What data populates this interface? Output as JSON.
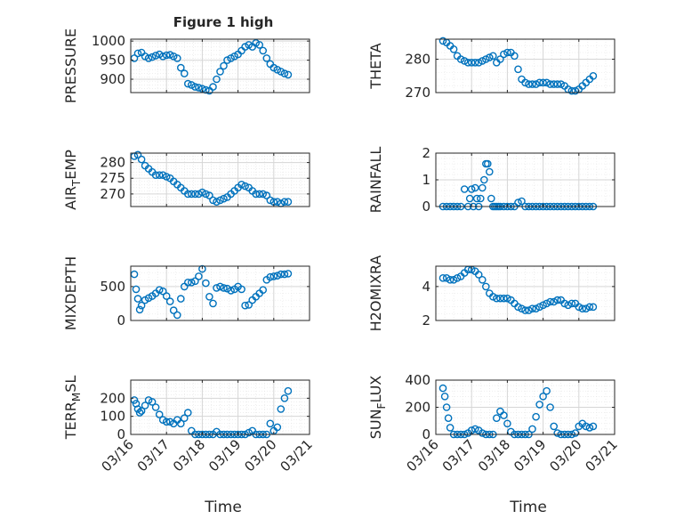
{
  "figure": {
    "title": "Figure 1 high"
  },
  "chart_data": [
    {
      "type": "scatter",
      "ylabel": "PRESSURE",
      "ylabel_sub": "",
      "ylim": [
        865,
        1005
      ],
      "yticks": [
        900,
        950,
        1000
      ],
      "xlim": [
        0,
        5
      ],
      "xticks": [
        0,
        1,
        2,
        3,
        4,
        5
      ],
      "x": [
        0.1,
        0.2,
        0.3,
        0.4,
        0.5,
        0.6,
        0.7,
        0.8,
        0.9,
        1.0,
        1.1,
        1.2,
        1.3,
        1.4,
        1.5,
        1.6,
        1.7,
        1.8,
        1.9,
        2.0,
        2.1,
        2.2,
        2.3,
        2.4,
        2.5,
        2.6,
        2.7,
        2.8,
        2.9,
        3.0,
        3.1,
        3.2,
        3.3,
        3.4,
        3.5,
        3.6,
        3.7,
        3.8,
        3.9,
        4.0,
        4.1,
        4.2,
        4.3,
        4.4
      ],
      "y": [
        955,
        968,
        970,
        960,
        955,
        958,
        962,
        965,
        960,
        963,
        964,
        960,
        955,
        930,
        915,
        888,
        885,
        880,
        878,
        875,
        872,
        870,
        880,
        900,
        920,
        935,
        950,
        955,
        960,
        965,
        975,
        985,
        990,
        985,
        995,
        990,
        975,
        955,
        940,
        930,
        925,
        920,
        915,
        912
      ]
    },
    {
      "type": "scatter",
      "ylabel": "THETA",
      "ylabel_sub": "",
      "ylim": [
        270,
        286
      ],
      "yticks": [
        270,
        280
      ],
      "xlim": [
        0,
        5
      ],
      "xticks": [
        0,
        1,
        2,
        3,
        4,
        5
      ],
      "x": [
        0.2,
        0.3,
        0.4,
        0.5,
        0.6,
        0.7,
        0.8,
        0.9,
        1.0,
        1.1,
        1.2,
        1.3,
        1.4,
        1.5,
        1.6,
        1.7,
        1.8,
        1.9,
        2.0,
        2.1,
        2.2,
        2.3,
        2.4,
        2.5,
        2.6,
        2.7,
        2.8,
        2.9,
        3.0,
        3.1,
        3.2,
        3.3,
        3.4,
        3.5,
        3.6,
        3.7,
        3.8,
        3.9,
        4.0,
        4.1,
        4.2,
        4.3,
        4.4
      ],
      "y": [
        285.5,
        285,
        284,
        283,
        281,
        280,
        279.5,
        279,
        279,
        279,
        279,
        279.5,
        280,
        280.5,
        281,
        279,
        280,
        281.5,
        282,
        282,
        281,
        277,
        274,
        273,
        272.5,
        272.5,
        272.5,
        273,
        273,
        273,
        272.5,
        272.5,
        272.5,
        272.5,
        272,
        271,
        270.5,
        270.5,
        271,
        272,
        273,
        274,
        275
      ]
    },
    {
      "type": "scatter",
      "ylabel": "AIR",
      "ylabel_sub": "T",
      "ylabel_suffix": "EMP",
      "ylim": [
        266,
        283
      ],
      "yticks": [
        270,
        275,
        280
      ],
      "xlim": [
        0,
        5
      ],
      "xticks": [
        0,
        1,
        2,
        3,
        4,
        5
      ],
      "x": [
        0.1,
        0.2,
        0.3,
        0.4,
        0.5,
        0.6,
        0.7,
        0.8,
        0.9,
        1.0,
        1.1,
        1.2,
        1.3,
        1.4,
        1.5,
        1.6,
        1.7,
        1.8,
        1.9,
        2.0,
        2.1,
        2.2,
        2.3,
        2.4,
        2.5,
        2.6,
        2.7,
        2.8,
        2.9,
        3.0,
        3.1,
        3.2,
        3.3,
        3.4,
        3.5,
        3.6,
        3.7,
        3.8,
        3.9,
        4.0,
        4.1,
        4.2,
        4.3,
        4.4
      ],
      "y": [
        282,
        282.5,
        281,
        279,
        278,
        277,
        276,
        276,
        276,
        275.5,
        275,
        274,
        273,
        272,
        271,
        270,
        270,
        270,
        270,
        270.5,
        270,
        269.5,
        268,
        267.5,
        268,
        268.5,
        269,
        270,
        271,
        272,
        273,
        272.5,
        272,
        271,
        270,
        270,
        270,
        269.5,
        268,
        267.5,
        267.5,
        267,
        267.5,
        267.5
      ]
    },
    {
      "type": "scatter",
      "ylabel": "RAINFALL",
      "ylabel_sub": "",
      "ylim": [
        0,
        2
      ],
      "yticks": [
        0,
        1,
        2
      ],
      "xlim": [
        0,
        5
      ],
      "xticks": [
        0,
        1,
        2,
        3,
        4,
        5
      ],
      "x": [
        0.2,
        0.3,
        0.4,
        0.5,
        0.6,
        0.7,
        0.8,
        0.9,
        0.95,
        1.0,
        1.05,
        1.1,
        1.15,
        1.2,
        1.25,
        1.3,
        1.35,
        1.4,
        1.45,
        1.5,
        1.55,
        1.6,
        1.65,
        1.7,
        1.75,
        1.8,
        1.9,
        2.0,
        2.1,
        2.2,
        2.3,
        2.4,
        2.5,
        2.6,
        2.7,
        2.8,
        2.9,
        3.0,
        3.1,
        3.2,
        3.3,
        3.4,
        3.5,
        3.6,
        3.7,
        3.8,
        3.9,
        4.0,
        4.1,
        4.2,
        4.3,
        4.4
      ],
      "y": [
        0,
        0,
        0,
        0,
        0,
        0,
        0.65,
        0,
        0.3,
        0.65,
        0,
        0.7,
        0.3,
        0,
        0.3,
        0.7,
        1.0,
        1.6,
        1.6,
        1.3,
        0.3,
        0,
        0,
        0,
        0,
        0,
        0,
        0,
        0,
        0,
        0.15,
        0.2,
        0,
        0,
        0,
        0,
        0,
        0,
        0,
        0,
        0,
        0,
        0,
        0,
        0,
        0,
        0,
        0,
        0,
        0,
        0,
        0
      ]
    },
    {
      "type": "scatter",
      "ylabel": "MIXDEPTH",
      "ylabel_sub": "",
      "ylim": [
        0,
        800
      ],
      "yticks": [
        0,
        500
      ],
      "xlim": [
        0,
        5
      ],
      "xticks": [
        0,
        1,
        2,
        3,
        4,
        5
      ],
      "x": [
        0.1,
        0.15,
        0.2,
        0.25,
        0.3,
        0.4,
        0.5,
        0.6,
        0.7,
        0.8,
        0.9,
        1.0,
        1.1,
        1.2,
        1.3,
        1.4,
        1.5,
        1.6,
        1.7,
        1.8,
        1.9,
        2.0,
        2.1,
        2.2,
        2.3,
        2.4,
        2.5,
        2.6,
        2.7,
        2.8,
        2.9,
        3.0,
        3.1,
        3.2,
        3.3,
        3.4,
        3.5,
        3.6,
        3.7,
        3.8,
        3.9,
        4.0,
        4.1,
        4.2,
        4.3,
        4.4
      ],
      "y": [
        680,
        460,
        320,
        160,
        220,
        300,
        330,
        360,
        400,
        450,
        430,
        360,
        280,
        150,
        80,
        320,
        500,
        560,
        560,
        580,
        650,
        760,
        550,
        350,
        250,
        480,
        500,
        480,
        470,
        440,
        460,
        500,
        460,
        220,
        230,
        300,
        350,
        400,
        450,
        600,
        640,
        650,
        660,
        680,
        680,
        690
      ]
    },
    {
      "type": "scatter",
      "ylabel": "H2OMIXRA",
      "ylabel_sub": "",
      "ylim": [
        2,
        5.2
      ],
      "yticks": [
        2,
        4
      ],
      "xlim": [
        0,
        5
      ],
      "xticks": [
        0,
        1,
        2,
        3,
        4,
        5
      ],
      "x": [
        0.2,
        0.3,
        0.4,
        0.5,
        0.6,
        0.7,
        0.8,
        0.9,
        1.0,
        1.1,
        1.2,
        1.3,
        1.4,
        1.5,
        1.6,
        1.7,
        1.8,
        1.9,
        2.0,
        2.1,
        2.2,
        2.3,
        2.4,
        2.5,
        2.6,
        2.7,
        2.8,
        2.9,
        3.0,
        3.1,
        3.2,
        3.3,
        3.4,
        3.5,
        3.6,
        3.7,
        3.8,
        3.9,
        4.0,
        4.1,
        4.2,
        4.3,
        4.4
      ],
      "y": [
        4.5,
        4.5,
        4.4,
        4.4,
        4.5,
        4.6,
        4.8,
        5.0,
        5.0,
        4.9,
        4.7,
        4.4,
        4.0,
        3.6,
        3.4,
        3.3,
        3.3,
        3.3,
        3.3,
        3.2,
        3.0,
        2.8,
        2.7,
        2.6,
        2.6,
        2.7,
        2.7,
        2.8,
        2.9,
        3.0,
        3.1,
        3.1,
        3.2,
        3.2,
        3.0,
        2.9,
        3.0,
        3.0,
        2.8,
        2.7,
        2.7,
        2.8,
        2.8
      ]
    },
    {
      "type": "scatter",
      "ylabel": "TERR",
      "ylabel_sub": "M",
      "ylabel_suffix": "SL",
      "ylim": [
        0,
        300
      ],
      "yticks": [
        0,
        100,
        200
      ],
      "xlim": [
        0,
        5
      ],
      "xticks": [
        0,
        1,
        2,
        3,
        4,
        5
      ],
      "x": [
        0.1,
        0.15,
        0.2,
        0.25,
        0.3,
        0.4,
        0.5,
        0.6,
        0.7,
        0.8,
        0.9,
        1.0,
        1.1,
        1.2,
        1.3,
        1.4,
        1.5,
        1.6,
        1.7,
        1.8,
        1.9,
        2.0,
        2.1,
        2.2,
        2.3,
        2.4,
        2.5,
        2.6,
        2.7,
        2.8,
        2.9,
        3.0,
        3.1,
        3.2,
        3.3,
        3.4,
        3.5,
        3.6,
        3.7,
        3.8,
        3.9,
        4.0,
        4.1,
        4.2,
        4.3,
        4.4
      ],
      "y": [
        190,
        170,
        140,
        120,
        130,
        160,
        190,
        180,
        150,
        110,
        80,
        70,
        70,
        60,
        80,
        60,
        90,
        120,
        20,
        0,
        0,
        0,
        0,
        0,
        0,
        15,
        0,
        0,
        0,
        0,
        0,
        0,
        0,
        0,
        10,
        20,
        0,
        0,
        0,
        0,
        60,
        20,
        40,
        140,
        200,
        240
      ]
    },
    {
      "type": "scatter",
      "ylabel": "SUN",
      "ylabel_sub": "F",
      "ylabel_suffix": "LUX",
      "ylim": [
        0,
        400
      ],
      "yticks": [
        0,
        200,
        400
      ],
      "xlim": [
        0,
        5
      ],
      "xticks": [
        0,
        1,
        2,
        3,
        4,
        5
      ],
      "x": [
        0.2,
        0.25,
        0.3,
        0.35,
        0.4,
        0.5,
        0.6,
        0.7,
        0.8,
        0.9,
        1.0,
        1.1,
        1.2,
        1.3,
        1.4,
        1.5,
        1.6,
        1.7,
        1.8,
        1.9,
        2.0,
        2.1,
        2.2,
        2.3,
        2.4,
        2.5,
        2.6,
        2.7,
        2.8,
        2.9,
        3.0,
        3.1,
        3.2,
        3.3,
        3.4,
        3.5,
        3.6,
        3.7,
        3.8,
        3.9,
        4.0,
        4.1,
        4.2,
        4.3,
        4.4
      ],
      "y": [
        340,
        280,
        200,
        120,
        50,
        0,
        0,
        0,
        0,
        10,
        30,
        40,
        30,
        10,
        0,
        0,
        0,
        120,
        170,
        140,
        80,
        20,
        0,
        0,
        0,
        0,
        0,
        40,
        130,
        220,
        280,
        320,
        200,
        60,
        10,
        0,
        0,
        0,
        0,
        10,
        60,
        80,
        60,
        50,
        60
      ]
    }
  ],
  "x_tick_labels": [
    "03/16",
    "03/17",
    "03/18",
    "03/19",
    "03/20",
    "03/21"
  ],
  "x_axis_label": "Time"
}
